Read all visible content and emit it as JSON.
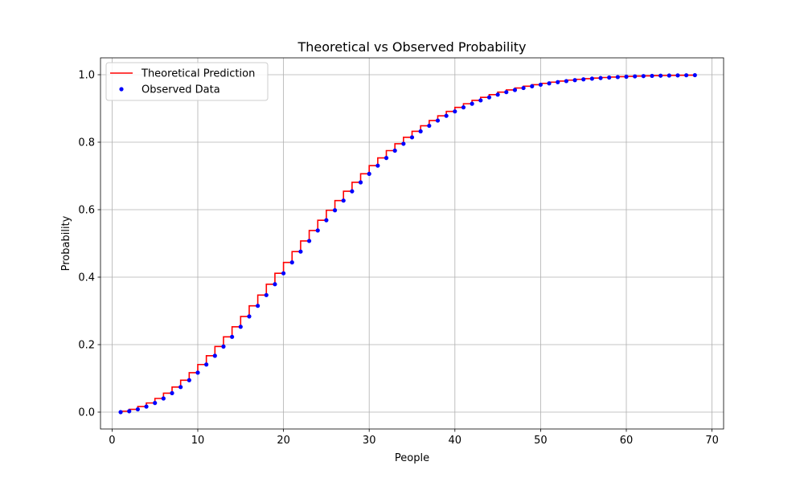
{
  "chart_data": {
    "type": "line",
    "title": "Theoretical vs Observed Probability",
    "xlabel": "People",
    "ylabel": "Probability",
    "xlim": [
      -1.35,
      71.35
    ],
    "ylim": [
      -0.05,
      1.05
    ],
    "xticks": [
      0,
      10,
      20,
      30,
      40,
      50,
      60,
      70
    ],
    "yticks": [
      0.0,
      0.2,
      0.4,
      0.6,
      0.8,
      1.0
    ],
    "xtick_labels": [
      "0",
      "10",
      "20",
      "30",
      "40",
      "50",
      "60",
      "70"
    ],
    "ytick_labels": [
      "0.0",
      "0.2",
      "0.4",
      "0.6",
      "0.8",
      "1.0"
    ],
    "grid": true,
    "legend_position": "top-left",
    "x": [
      1,
      2,
      3,
      4,
      5,
      6,
      7,
      8,
      9,
      10,
      11,
      12,
      13,
      14,
      15,
      16,
      17,
      18,
      19,
      20,
      21,
      22,
      23,
      24,
      25,
      26,
      27,
      28,
      29,
      30,
      31,
      32,
      33,
      34,
      35,
      36,
      37,
      38,
      39,
      40,
      41,
      42,
      43,
      44,
      45,
      46,
      47,
      48,
      49,
      50,
      51,
      52,
      53,
      54,
      55,
      56,
      57,
      58,
      59,
      60,
      61,
      62,
      63,
      64,
      65,
      66,
      67,
      68
    ],
    "series": [
      {
        "name": "Theoretical Prediction",
        "style": "step",
        "color": "#ff0000",
        "values": [
          0.0,
          0.0027,
          0.0082,
          0.0164,
          0.0271,
          0.0405,
          0.0562,
          0.0743,
          0.0946,
          0.1169,
          0.1411,
          0.167,
          0.1944,
          0.2231,
          0.2529,
          0.2836,
          0.315,
          0.3469,
          0.3791,
          0.4114,
          0.4437,
          0.4757,
          0.5073,
          0.5383,
          0.5687,
          0.5982,
          0.6269,
          0.6545,
          0.681,
          0.7063,
          0.7305,
          0.7533,
          0.775,
          0.7953,
          0.8144,
          0.8322,
          0.8487,
          0.8641,
          0.8782,
          0.8912,
          0.9032,
          0.914,
          0.9239,
          0.9329,
          0.941,
          0.9483,
          0.9548,
          0.9606,
          0.9658,
          0.9704,
          0.9744,
          0.978,
          0.9811,
          0.9839,
          0.9863,
          0.9883,
          0.9901,
          0.9917,
          0.993,
          0.9941,
          0.9951,
          0.9959,
          0.9966,
          0.9971,
          0.9976,
          0.998,
          0.9984,
          0.9987
        ]
      },
      {
        "name": "Observed Data",
        "style": "markers",
        "color": "#0000ff",
        "values": [
          0.0,
          0.0027,
          0.0082,
          0.0164,
          0.0271,
          0.0405,
          0.0562,
          0.0743,
          0.0946,
          0.1169,
          0.1411,
          0.167,
          0.1944,
          0.2231,
          0.2529,
          0.2836,
          0.315,
          0.3469,
          0.3791,
          0.4114,
          0.4437,
          0.4757,
          0.5073,
          0.5383,
          0.5687,
          0.5982,
          0.6269,
          0.6545,
          0.681,
          0.7063,
          0.7305,
          0.7533,
          0.775,
          0.7953,
          0.8144,
          0.8322,
          0.8487,
          0.8641,
          0.8782,
          0.8912,
          0.9032,
          0.914,
          0.9239,
          0.9329,
          0.941,
          0.9483,
          0.9548,
          0.9606,
          0.9658,
          0.9704,
          0.9744,
          0.978,
          0.9811,
          0.9839,
          0.9863,
          0.9883,
          0.9901,
          0.9917,
          0.993,
          0.9941,
          0.9951,
          0.9959,
          0.9966,
          0.9971,
          0.9976,
          0.998,
          0.9984,
          0.9987
        ]
      }
    ]
  }
}
